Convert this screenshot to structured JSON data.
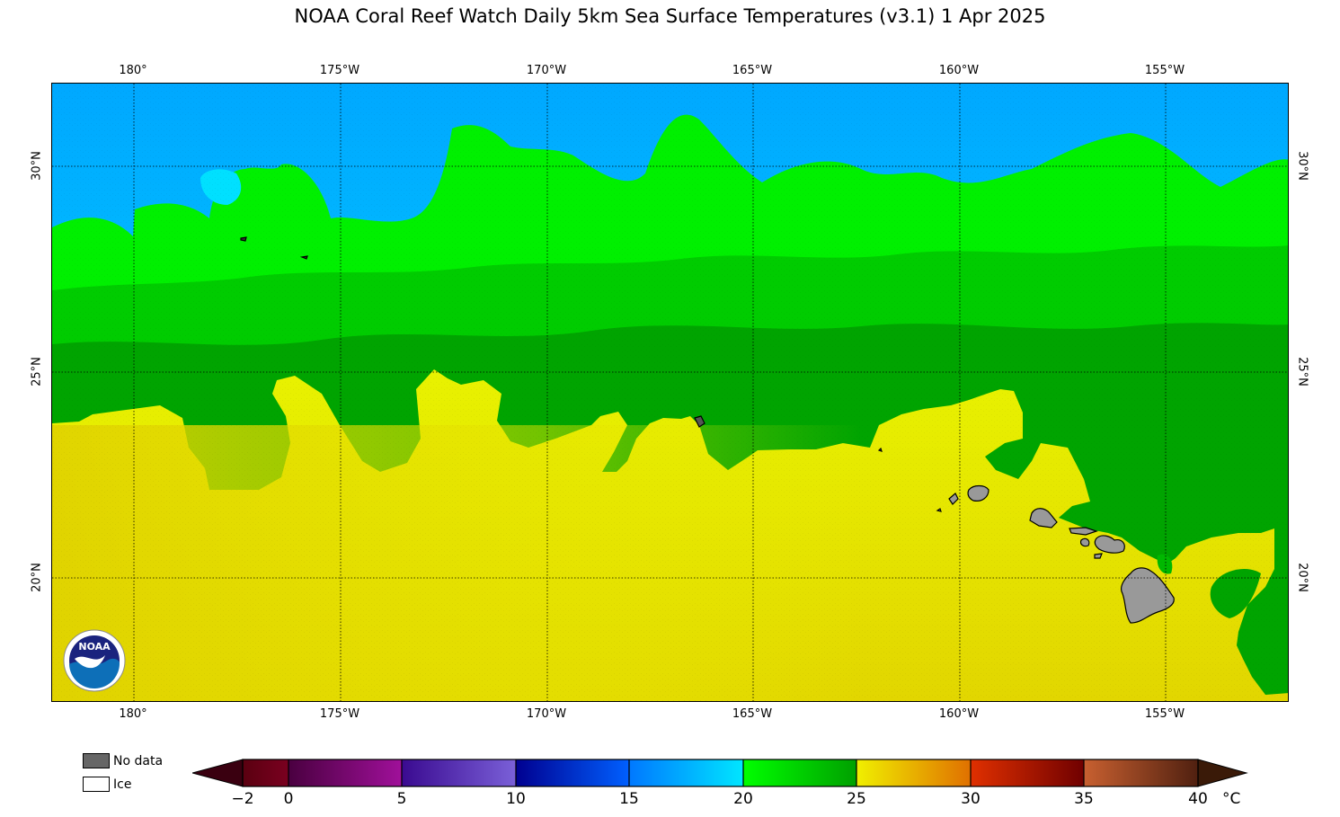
{
  "title": "NOAA Coral Reef Watch Daily 5km Sea Surface Temperatures  (v3.1)   1 Apr 2025",
  "map": {
    "lon_labels": [
      "180°",
      "175°W",
      "170°W",
      "165°W",
      "160°W",
      "155°W"
    ],
    "lat_labels": [
      "30°N",
      "25°N",
      "20°N"
    ],
    "colors": {
      "cold_blue": "#00a0ff",
      "cyan": "#00e0ff",
      "bright_green": "#00ff00",
      "mid_green": "#00d000",
      "dark_green": "#00a000",
      "yellow": "#e8f000",
      "gold": "#e0d000",
      "land": "#999999"
    },
    "logo": "NOAA"
  },
  "legend": {
    "no_data_label": "No data",
    "ice_label": "Ice",
    "no_data_color": "#666666",
    "ice_color": "#ffffff"
  },
  "colorbar": {
    "ticks": [
      "−2",
      "0",
      "5",
      "10",
      "15",
      "20",
      "25",
      "30",
      "35",
      "40"
    ],
    "unit": "°C"
  }
}
